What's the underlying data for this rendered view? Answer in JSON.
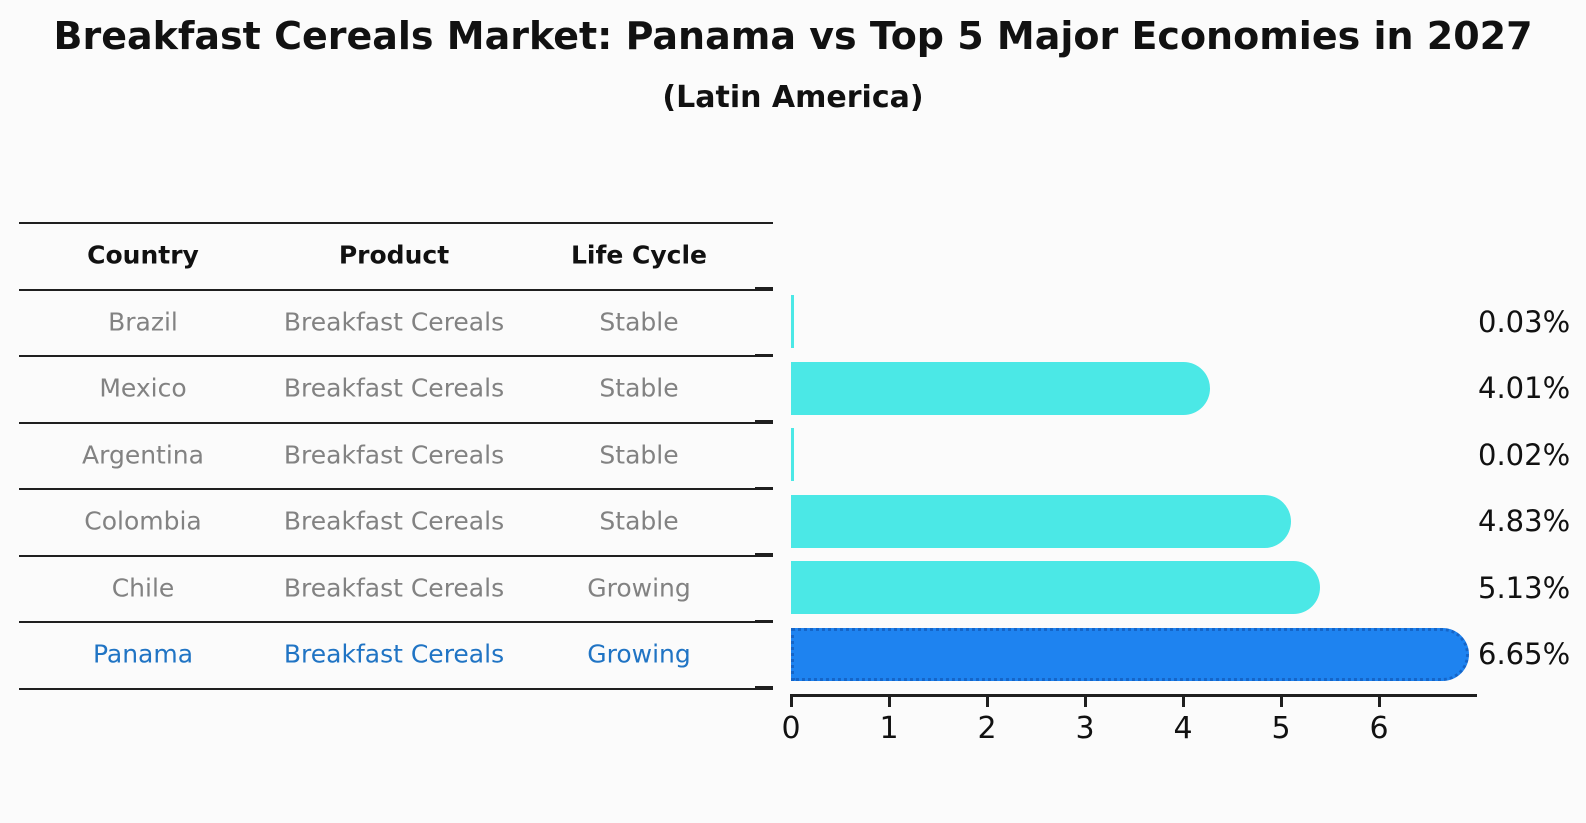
{
  "title": "Breakfast Cereals Market: Panama vs Top 5 Major Economies in 2027",
  "subtitle": "(Latin America)",
  "colors": {
    "bar_default": "#4be8e6",
    "bar_highlight": "#1e83f0",
    "highlight_border": "#1565c8",
    "highlight_text": "#2074c4",
    "body_text": "#828282",
    "header_text": "#111111",
    "line": "#1f1f1f",
    "background": "#fbfbfb"
  },
  "table": {
    "headers": [
      "Country",
      "Product",
      "Life Cycle"
    ],
    "rows": [
      {
        "country": "Brazil",
        "product": "Breakfast Cereals",
        "life_cycle": "Stable",
        "highlighted": false
      },
      {
        "country": "Mexico",
        "product": "Breakfast Cereals",
        "life_cycle": "Stable",
        "highlighted": false
      },
      {
        "country": "Argentina",
        "product": "Breakfast Cereals",
        "life_cycle": "Stable",
        "highlighted": false
      },
      {
        "country": "Colombia",
        "product": "Breakfast Cereals",
        "life_cycle": "Stable",
        "highlighted": false
      },
      {
        "country": "Chile",
        "product": "Breakfast Cereals",
        "life_cycle": "Growing",
        "highlighted": false
      },
      {
        "country": "Panama",
        "product": "Breakfast Cereals",
        "life_cycle": "Growing",
        "highlighted": true
      }
    ]
  },
  "chart_data": {
    "type": "bar",
    "orientation": "horizontal",
    "title": "Breakfast Cereals Market: Panama vs Top 5 Major Economies in 2027",
    "subtitle": "(Latin America)",
    "categories": [
      "Brazil",
      "Mexico",
      "Argentina",
      "Colombia",
      "Chile",
      "Panama"
    ],
    "values": [
      0.03,
      4.01,
      0.02,
      4.83,
      5.13,
      6.65
    ],
    "value_labels": [
      "0.03%",
      "4.01%",
      "0.02%",
      "4.83%",
      "5.13%",
      "6.65%"
    ],
    "highlight_category": "Panama",
    "xlabel": "",
    "ylabel": "",
    "x_ticks": [
      0,
      1,
      2,
      3,
      4,
      5,
      6
    ],
    "xlim": [
      0,
      7
    ],
    "grid": false,
    "legend": false
  }
}
